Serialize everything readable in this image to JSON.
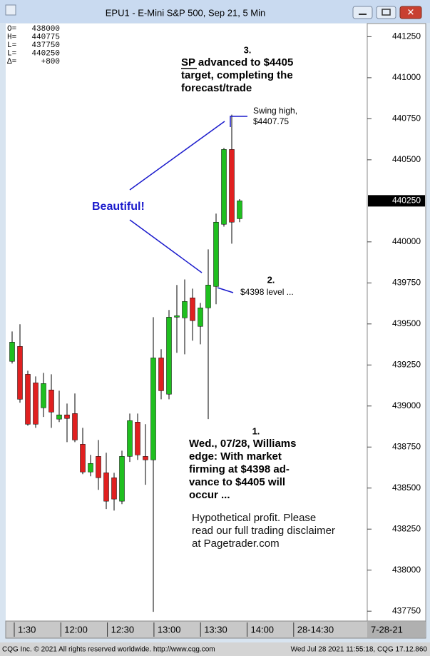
{
  "window_title": "EPU1 - E-Mini S&P 500, Sep 21, 5 Min",
  "chart_data": {
    "type": "candlestick",
    "info": [
      {
        "label": "O=",
        "value": 438000
      },
      {
        "label": "H=",
        "value": 440775
      },
      {
        "label": "L=",
        "value": 437750
      },
      {
        "label": "L=",
        "value": 440250
      },
      {
        "label": "Δ=",
        "value": "+800"
      }
    ],
    "series": {
      "up_color": "#1fbf1f",
      "down_color": "#e02020",
      "open": [
        439272,
        439363,
        439193,
        439141,
        438989,
        439098,
        438920,
        438946,
        438954,
        438767,
        438598,
        438693,
        438593,
        438563,
        438420,
        438693,
        438902,
        438693,
        438672,
        439293,
        439072,
        439541,
        439537,
        439659,
        439485,
        439598,
        439728,
        440107,
        440563,
        440141
      ],
      "high": [
        439454,
        439498,
        439215,
        439180,
        439202,
        439193,
        439093,
        439015,
        439076,
        438867,
        438702,
        438793,
        438715,
        438593,
        438728,
        438954,
        438954,
        438889,
        439541,
        439346,
        439585,
        439737,
        439771,
        439715,
        439628,
        439954,
        440172,
        440572,
        440775,
        440260
      ],
      "low": [
        439259,
        439020,
        438880,
        438867,
        438933,
        438867,
        438902,
        438780,
        438780,
        438585,
        438572,
        438489,
        438372,
        438363,
        438402,
        438659,
        438672,
        438520,
        437746,
        439041,
        439041,
        439324,
        439315,
        439398,
        439376,
        438920,
        439620,
        440093,
        439989,
        440120
      ],
      "close": [
        439389,
        439041,
        438889,
        438889,
        439137,
        438963,
        438946,
        438924,
        438793,
        438598,
        438650,
        438563,
        438420,
        438433,
        438693,
        438911,
        438702,
        438672,
        439293,
        439093,
        439541,
        439550,
        439637,
        439520,
        439598,
        439737,
        440120,
        440563,
        440120,
        440250
      ]
    },
    "ylim": [
      437690,
      441330
    ],
    "yticks": [
      437750,
      438000,
      438250,
      438500,
      438750,
      439000,
      439250,
      439500,
      439750,
      440000,
      440500,
      440750,
      441000,
      441250
    ],
    "last_price": 440250,
    "xtick_labels": [
      "1:30",
      "12:00",
      "12:30",
      "13:00",
      "13:30",
      "14:00",
      "28-14:30"
    ],
    "date_box": "7-28-21",
    "annotations": {
      "note3_num": "3.",
      "note3_sp": "SP",
      "note3_line1": " advanced to $4405",
      "note3_line2": "target, completing the",
      "note3_line3": "forecast/trade",
      "swing_line1": "Swing high,",
      "swing_line2": "$4407.75",
      "beautiful": "Beautiful!",
      "note2_num": "2.",
      "note2_text": "$4398 level ...",
      "note1_num": "1.",
      "note1_lines": [
        "Wed., 07/28, Williams",
        "edge: With market",
        "firming at $4398 ad-",
        "vance to $4405 will",
        "occur ..."
      ],
      "disclaimer": [
        "Hypothetical profit. Please",
        "read our full trading disclaimer",
        "at Pagetrader.com"
      ]
    }
  },
  "footer": {
    "left": "CQG Inc. © 2021 All rights reserved worldwide. http://www.cqg.com",
    "right": "Wed Jul 28 2021 11:55:18, CQG 17.12.860"
  }
}
